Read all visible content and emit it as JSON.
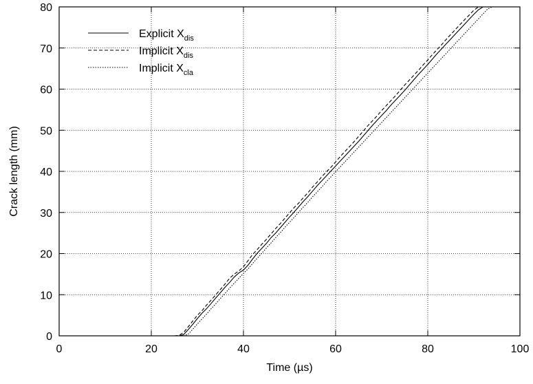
{
  "chart_data": {
    "type": "line",
    "xlabel": "Time (µs)",
    "ylabel": "Crack length (mm)",
    "xlim": [
      0,
      100
    ],
    "ylim": [
      0,
      80
    ],
    "xticks": [
      0,
      20,
      40,
      60,
      80,
      100
    ],
    "yticks": [
      0,
      10,
      20,
      30,
      40,
      50,
      60,
      70,
      80
    ],
    "grid": true,
    "grid_style": "dotted",
    "legend_position": "top-left",
    "series": [
      {
        "name": "Explicit X",
        "name_sub": "dis",
        "line_style": "solid",
        "color": "#000000",
        "x": [
          26,
          27,
          28,
          29,
          30,
          31,
          32,
          33,
          34,
          35,
          36,
          37,
          38,
          39,
          40,
          41,
          42,
          43,
          44,
          45,
          46,
          47,
          48,
          49,
          50,
          51,
          52,
          53,
          54,
          55,
          56,
          57,
          58,
          59,
          60,
          61,
          62,
          63,
          64,
          65,
          66,
          67,
          68,
          69,
          70,
          71,
          72,
          73,
          74,
          75,
          76,
          77,
          78,
          79,
          80,
          81,
          82,
          83,
          84,
          85,
          86,
          87,
          88,
          89,
          90,
          91,
          92,
          93
        ],
        "y": [
          0,
          0.3,
          1.5,
          2.8,
          4.2,
          5.5,
          6.6,
          7.9,
          9.2,
          10.5,
          11.8,
          13.0,
          14.3,
          15.3,
          16.0,
          17.2,
          18.7,
          20.1,
          21.3,
          22.5,
          23.9,
          25.0,
          26.3,
          27.6,
          28.9,
          30.1,
          31.4,
          32.7,
          33.9,
          35.2,
          36.5,
          37.7,
          38.9,
          40.1,
          41.3,
          42.5,
          43.7,
          44.9,
          46.1,
          47.3,
          48.6,
          49.9,
          51.2,
          52.4,
          53.6,
          54.8,
          56.1,
          57.3,
          58.5,
          59.7,
          61.0,
          62.3,
          63.6,
          64.8,
          66.0,
          67.3,
          68.6,
          69.8,
          71.0,
          72.2,
          73.4,
          74.6,
          75.8,
          77.0,
          78.2,
          79.3,
          80.0,
          80.0
        ]
      },
      {
        "name": "Implicit X",
        "name_sub": "dis",
        "line_style": "dashed",
        "color": "#000000",
        "x": [
          25,
          26,
          27,
          28,
          29,
          30,
          31,
          32,
          33,
          34,
          35,
          36,
          37,
          38,
          39,
          40,
          41,
          42,
          43,
          44,
          45,
          46,
          47,
          48,
          49,
          50,
          51,
          52,
          53,
          54,
          55,
          56,
          57,
          58,
          59,
          60,
          61,
          62,
          63,
          64,
          65,
          66,
          67,
          68,
          69,
          70,
          71,
          72,
          73,
          74,
          75,
          76,
          77,
          78,
          79,
          80,
          81,
          82,
          83,
          84,
          85,
          86,
          87,
          88,
          89,
          90,
          91,
          92,
          93
        ],
        "y": [
          0,
          0.1,
          0.8,
          2.2,
          3.6,
          5.0,
          6.1,
          7.5,
          8.7,
          10.0,
          11.3,
          12.6,
          14.0,
          15.0,
          15.8,
          16.8,
          18.3,
          19.8,
          21.0,
          22.3,
          23.5,
          24.8,
          26.1,
          27.3,
          28.6,
          29.9,
          31.2,
          32.3,
          33.6,
          34.8,
          36.2,
          37.4,
          38.7,
          39.9,
          41.0,
          42.3,
          43.6,
          44.8,
          46.0,
          47.2,
          48.5,
          49.8,
          51.1,
          52.3,
          53.5,
          54.8,
          56.0,
          57.2,
          58.4,
          59.7,
          61.0,
          62.2,
          63.4,
          64.6,
          65.9,
          67.1,
          68.4,
          69.6,
          70.8,
          72.1,
          73.3,
          74.5,
          75.7,
          76.9,
          78.0,
          79.2,
          80.0,
          80.0,
          80.0
        ]
      },
      {
        "name": "Implicit X",
        "name_sub": "cla",
        "line_style": "dotted",
        "color": "#000000",
        "x": [
          27,
          28,
          29,
          30,
          31,
          32,
          33,
          34,
          35,
          36,
          37,
          38,
          39,
          40,
          41,
          42,
          43,
          44,
          45,
          46,
          47,
          48,
          49,
          50,
          51,
          52,
          53,
          54,
          55,
          56,
          57,
          58,
          59,
          60,
          61,
          62,
          63,
          64,
          65,
          66,
          67,
          68,
          69,
          70,
          71,
          72,
          73,
          74,
          75,
          76,
          77,
          78,
          79,
          80,
          81,
          82,
          83,
          84,
          85,
          86,
          87,
          88,
          89,
          90,
          91,
          92,
          93,
          94
        ],
        "y": [
          0,
          0.4,
          1.6,
          2.9,
          4.1,
          5.3,
          6.6,
          7.8,
          9.1,
          10.3,
          11.6,
          12.8,
          14.0,
          15.2,
          16.3,
          17.6,
          18.9,
          20.1,
          21.4,
          22.6,
          23.9,
          25.1,
          26.4,
          27.6,
          28.8,
          30.1,
          31.3,
          32.5,
          33.8,
          35.0,
          36.2,
          37.5,
          38.7,
          39.9,
          41.1,
          42.3,
          43.5,
          44.7,
          45.9,
          47.1,
          48.3,
          49.5,
          50.7,
          51.9,
          53.1,
          54.3,
          55.5,
          56.7,
          57.9,
          59.1,
          60.3,
          61.5,
          62.7,
          63.9,
          65.1,
          66.3,
          67.5,
          68.7,
          69.9,
          71.1,
          72.3,
          73.5,
          74.7,
          75.9,
          77.1,
          78.3,
          79.5,
          80.0
        ]
      }
    ]
  }
}
